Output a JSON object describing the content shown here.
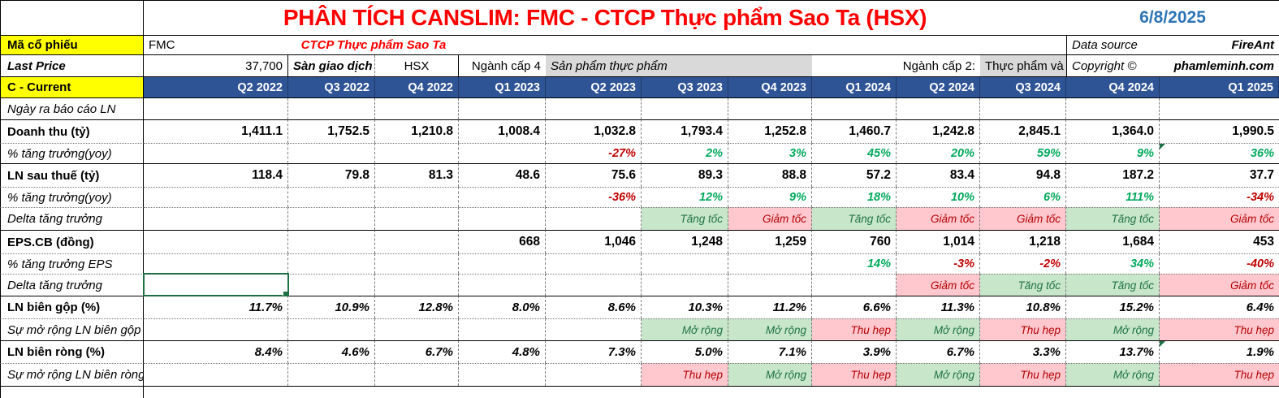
{
  "title": "PHÂN TÍCH CANSLIM: FMC - CTCP Thực phẩm Sao Ta (HSX)",
  "date": "6/8/2025",
  "info": {
    "ticker_label": "Mã cổ phiếu",
    "ticker": "FMC",
    "company": "CTCP Thực phẩm Sao Ta",
    "data_source_label": "Data source",
    "data_source_value": "FireAnt",
    "last_price_label": "Last Price",
    "last_price_value": "37,700",
    "exchange_label": "Sàn giao dịch",
    "exchange_value": "HSX",
    "industry4_label": "Ngành cấp 4",
    "industry4_value": "Sản phẩm thực phẩm",
    "industry2_label": "Ngành cấp 2:",
    "industry2_value": "Thực phẩm và",
    "copyright_label": "Copyright ©",
    "copyright_value": "phamleminh.com"
  },
  "table": {
    "corner_label": "C - Current",
    "columns": [
      "Q2 2022",
      "Q3 2022",
      "Q4 2022",
      "Q1 2023",
      "Q2 2023",
      "Q3 2023",
      "Q4 2023",
      "Q1 2024",
      "Q2 2024",
      "Q3 2024",
      "Q4 2024",
      "Q1 2025"
    ],
    "rows": [
      {
        "label": "Ngày ra báo cáo LN",
        "type": "empty",
        "cells": [
          "",
          "",
          "",
          "",
          "",
          "",
          "",
          "",
          "",
          "",
          "",
          ""
        ]
      },
      {
        "label": "Doanh thu (tỷ)",
        "type": "value",
        "cells": [
          "1,411.1",
          "1,752.5",
          "1,210.8",
          "1,008.4",
          "1,032.8",
          "1,793.4",
          "1,252.8",
          "1,460.7",
          "1,242.8",
          "2,845.1",
          "1,364.0",
          "1,990.5"
        ]
      },
      {
        "label": "% tăng trưởng(yoy)",
        "type": "pct",
        "cells": [
          "",
          "",
          "",
          "",
          "-27%",
          "2%",
          "3%",
          "45%",
          "20%",
          "59%",
          "9%",
          "36%"
        ]
      },
      {
        "label": "LN sau thuế (tỷ)",
        "type": "value",
        "cells": [
          "118.4",
          "79.8",
          "81.3",
          "48.6",
          "75.6",
          "89.3",
          "88.8",
          "57.2",
          "83.4",
          "94.8",
          "187.2",
          "37.7"
        ]
      },
      {
        "label": "% tăng trưởng(yoy)",
        "type": "pct",
        "cells": [
          "",
          "",
          "",
          "",
          "-36%",
          "12%",
          "9%",
          "18%",
          "10%",
          "6%",
          "111%",
          "-34%"
        ]
      },
      {
        "label": "Delta tăng trưởng",
        "type": "fill",
        "cells": [
          "",
          "",
          "",
          "",
          "",
          "Tăng tốc",
          "Giảm tốc",
          "Tăng tốc",
          "Giảm tốc",
          "Giảm tốc",
          "Tăng tốc",
          "Giảm tốc"
        ]
      },
      {
        "label": "EPS.CB (đồng)",
        "type": "value",
        "cells": [
          "",
          "",
          "",
          "668",
          "1,046",
          "1,248",
          "1,259",
          "760",
          "1,014",
          "1,218",
          "1,684",
          "453"
        ]
      },
      {
        "label": "% tăng trưởng EPS",
        "type": "pct",
        "cells": [
          "",
          "",
          "",
          "",
          "",
          "",
          "",
          "14%",
          "-3%",
          "-2%",
          "34%",
          "-40%"
        ]
      },
      {
        "label": "Delta tăng trưởng",
        "type": "fill",
        "cells": [
          "",
          "",
          "",
          "",
          "",
          "",
          "",
          "",
          "Giảm tốc",
          "Tăng tốc",
          "Tăng tốc",
          "Giảm tốc"
        ]
      },
      {
        "label": "LN biên gộp (%)",
        "type": "margin",
        "cells": [
          "11.7%",
          "10.9%",
          "12.8%",
          "8.0%",
          "8.6%",
          "10.3%",
          "11.2%",
          "6.6%",
          "11.3%",
          "10.8%",
          "15.2%",
          "6.4%"
        ]
      },
      {
        "label": "Sự mở rộng LN biên gộp",
        "type": "fill",
        "cells": [
          "",
          "",
          "",
          "",
          "",
          "Mở rộng",
          "Mở rộng",
          "Thu hẹp",
          "Mở rộng",
          "Thu hẹp",
          "Mở rộng",
          "Thu hẹp"
        ]
      },
      {
        "label": "LN biên ròng (%)",
        "type": "margin",
        "cells": [
          "8.4%",
          "4.6%",
          "6.7%",
          "4.8%",
          "7.3%",
          "5.0%",
          "7.1%",
          "3.9%",
          "6.7%",
          "3.3%",
          "13.7%",
          "1.9%"
        ]
      },
      {
        "label": "Sự mở rộng LN biên ròng",
        "type": "fill",
        "cells": [
          "",
          "",
          "",
          "",
          "",
          "Thu hẹp",
          "Mở rộng",
          "Thu hẹp",
          "Mở rộng",
          "Thu hẹp",
          "Mở rộng",
          "Thu hẹp"
        ]
      }
    ],
    "positive_terms": [
      "Tăng tốc",
      "Mở rộng"
    ],
    "negative_terms": [
      "Giảm tốc",
      "Thu hẹp"
    ],
    "selection": {
      "row": 8,
      "col": 0
    },
    "corner_markers": [
      {
        "row": 2,
        "col": 11
      },
      {
        "row": 11,
        "col": 11
      }
    ]
  },
  "colors": {
    "header_bg": "#2F5496",
    "accent_yellow": "#FFFF00",
    "title_red": "#FF0000",
    "date_blue": "#2E75B6",
    "industry_bg": "#D9D9D9",
    "positive_fill_bg": "#C8E7CA",
    "positive_fill_text": "#1F7246",
    "negative_fill_bg": "#FFC7CE",
    "negative_fill_text": "#B30000",
    "pct_positive": "#00A95C",
    "pct_negative": "#C00000",
    "selection_green": "#1E7145"
  }
}
